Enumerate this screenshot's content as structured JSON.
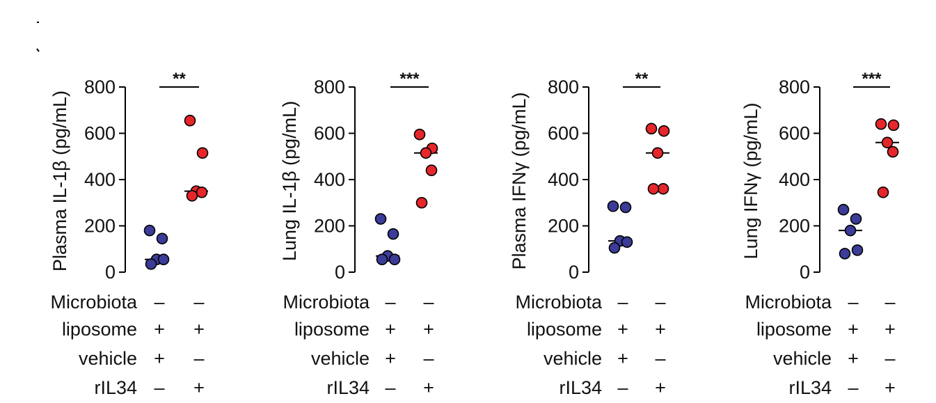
{
  "colors": {
    "group1": "#3b3b98",
    "group2": "#e5262a",
    "outline": "#000000"
  },
  "condition_rows": [
    "Microbiota",
    "liposome",
    "vehicle",
    "rIL34"
  ],
  "condition_signs": [
    [
      "–",
      "–"
    ],
    [
      "+",
      "+"
    ],
    [
      "+",
      "–"
    ],
    [
      "–",
      "+"
    ]
  ],
  "chart_data": [
    {
      "type": "scatter",
      "ylabel": "Plasma IL-1β (pg/mL)",
      "ylim": [
        0,
        800
      ],
      "yticks": [
        0,
        200,
        400,
        600,
        800
      ],
      "yticklabels": [
        "0",
        "200",
        "400",
        "600",
        "800"
      ],
      "significance": "**",
      "series": [
        {
          "values": [
            180,
            145,
            55,
            55,
            35
          ],
          "median": 55
        },
        {
          "values": [
            655,
            515,
            350,
            345,
            330
          ],
          "median": 350
        }
      ]
    },
    {
      "type": "scatter",
      "ylabel": "Lung IL-1β (pg/mL)",
      "ylim": [
        0,
        800
      ],
      "yticks": [
        0,
        200,
        400,
        600,
        800
      ],
      "yticklabels": [
        "0",
        "200",
        "400",
        "600",
        "800"
      ],
      "significance": "***",
      "series": [
        {
          "values": [
            230,
            165,
            70,
            55,
            55
          ],
          "median": 70
        },
        {
          "values": [
            595,
            535,
            515,
            440,
            300
          ],
          "median": 515
        }
      ]
    },
    {
      "type": "scatter",
      "ylabel": "Plasma IFNγ (pg/mL)",
      "ylim": [
        0,
        800
      ],
      "yticks": [
        0,
        200,
        400,
        600,
        800
      ],
      "yticklabels": [
        "0",
        "200",
        "400",
        "600",
        "800"
      ],
      "significance": "**",
      "series": [
        {
          "values": [
            285,
            280,
            135,
            130,
            105
          ],
          "median": 135
        },
        {
          "values": [
            620,
            610,
            515,
            360,
            360
          ],
          "median": 515
        }
      ]
    },
    {
      "type": "scatter",
      "ylabel": "Lung IFNγ (pg/mL)",
      "ylim": [
        0,
        800
      ],
      "yticks": [
        0,
        200,
        400,
        600,
        800
      ],
      "yticklabels": [
        "0",
        "200",
        "400",
        "600",
        "800"
      ],
      "significance": "***",
      "series": [
        {
          "values": [
            270,
            230,
            180,
            95,
            80
          ],
          "median": 180
        },
        {
          "values": [
            640,
            635,
            560,
            520,
            345
          ],
          "median": 560
        }
      ]
    }
  ]
}
